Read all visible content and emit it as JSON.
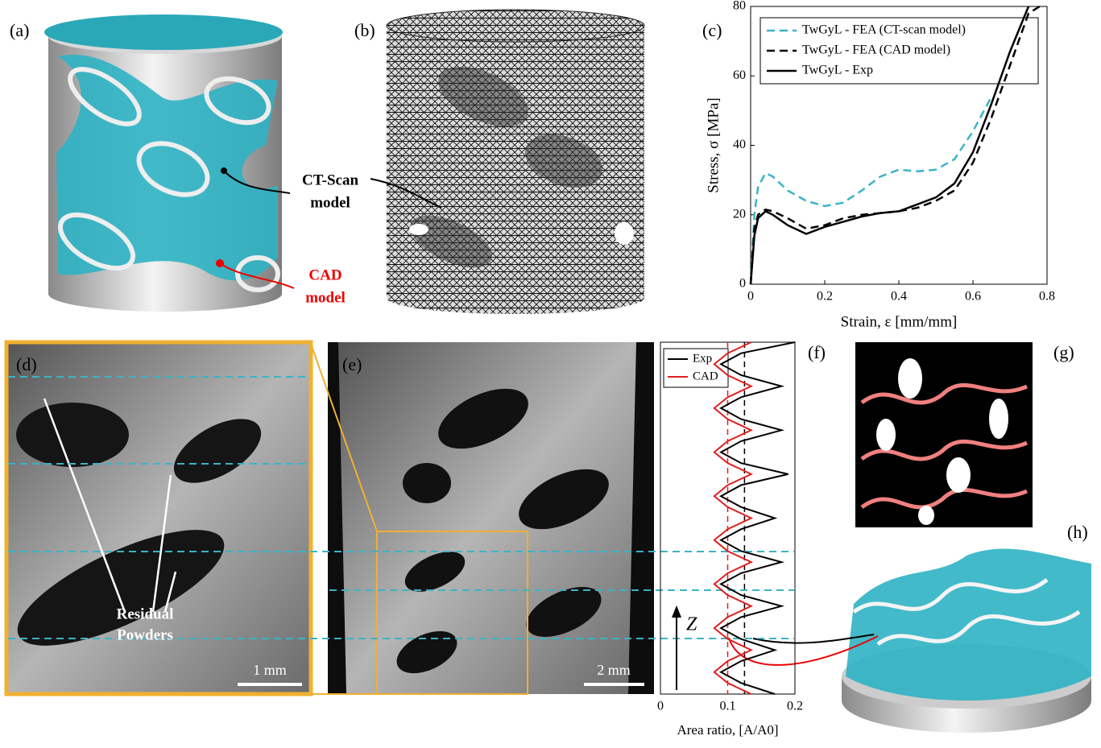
{
  "panel_labels": [
    "(a)",
    "(b)",
    "(c)",
    "(d)",
    "(e)",
    "(f)",
    "(g)",
    "(h)"
  ],
  "ct_scan_label": [
    "CT-Scan",
    "model"
  ],
  "cad_label": [
    "CAD",
    "model"
  ],
  "residual_label": [
    "Residual",
    "Powders"
  ],
  "scale_bars": [
    "1 mm",
    "2 mm"
  ],
  "chart_data": [
    {
      "type": "line",
      "xlabel": "Strain, ε [mm/mm]",
      "ylabel": "Stress, σ [MPa]",
      "xlim": [
        0,
        0.8
      ],
      "ylim": [
        0,
        80
      ],
      "xticks": [
        0,
        0.2,
        0.4,
        0.6,
        0.8
      ],
      "yticks": [
        0,
        20,
        40,
        60,
        80
      ],
      "legend": "upper left",
      "x": [
        0,
        0.01,
        0.02,
        0.04,
        0.06,
        0.1,
        0.15,
        0.2,
        0.25,
        0.3,
        0.35,
        0.4,
        0.45,
        0.5,
        0.55,
        0.6,
        0.65,
        0.7,
        0.75,
        0.78
      ],
      "series": [
        {
          "name": "TwGyL - FEA (CT-scan model)",
          "color": "#3ab4c6",
          "dashed": true,
          "values": [
            0,
            20,
            28,
            32,
            31,
            27,
            24,
            22.5,
            23.5,
            27,
            31,
            33,
            32.5,
            33,
            36,
            44,
            54,
            null,
            null,
            null
          ]
        },
        {
          "name": "TwGyL - FEA (CAD model)",
          "color": "#000000",
          "dashed": true,
          "values": [
            0,
            16,
            20,
            21.5,
            21,
            19,
            16,
            17,
            19,
            20,
            20.5,
            21,
            22,
            24,
            27,
            35,
            48,
            63,
            78,
            80
          ]
        },
        {
          "name": "TwGyL - Exp",
          "color": "#000000",
          "dashed": false,
          "values": [
            0,
            14,
            19,
            21,
            20,
            17,
            14.5,
            16.5,
            18,
            19.5,
            20.5,
            21,
            23,
            25,
            29,
            38,
            52,
            67,
            80,
            null
          ]
        }
      ]
    },
    {
      "type": "profile",
      "xlabel": "Area ratio, [A/A0]",
      "zlabel": "Z",
      "xlim": [
        0,
        0.2
      ],
      "xticks": [
        0,
        0.1,
        0.2
      ],
      "ylim": [
        0,
        1
      ],
      "reference_lines": [
        {
          "value": 0.1,
          "color": "#e02020"
        },
        {
          "value": 0.125,
          "color": "#000000"
        }
      ],
      "y": [
        0,
        0.03125,
        0.0625,
        0.09375,
        0.125,
        0.15625,
        0.1875,
        0.21875,
        0.25,
        0.28125,
        0.3125,
        0.34375,
        0.375,
        0.40625,
        0.4375,
        0.46875,
        0.5,
        0.53125,
        0.5625,
        0.59375,
        0.625,
        0.65625,
        0.6875,
        0.71875,
        0.75,
        0.78125,
        0.8125,
        0.84375,
        0.875,
        0.90625,
        0.9375,
        0.96875,
        1
      ],
      "series": [
        {
          "name": "Exp",
          "color": "#000000",
          "values": [
            0.17,
            0.12,
            0.09,
            0.12,
            0.17,
            0.12,
            0.09,
            0.12,
            0.18,
            0.12,
            0.09,
            0.12,
            0.18,
            0.12,
            0.09,
            0.12,
            0.17,
            0.12,
            0.09,
            0.12,
            0.19,
            0.12,
            0.09,
            0.12,
            0.18,
            0.12,
            0.09,
            0.12,
            0.18,
            0.12,
            0.09,
            0.12,
            0.2
          ]
        },
        {
          "name": "CAD",
          "color": "#e02020",
          "values": [
            0.135,
            0.1,
            0.08,
            0.1,
            0.135,
            0.1,
            0.08,
            0.1,
            0.135,
            0.1,
            0.08,
            0.1,
            0.135,
            0.1,
            0.08,
            0.1,
            0.135,
            0.1,
            0.08,
            0.1,
            0.135,
            0.1,
            0.08,
            0.1,
            0.135,
            0.1,
            0.08,
            0.1,
            0.135,
            0.1,
            0.08,
            0.1,
            0.135
          ]
        }
      ]
    }
  ]
}
